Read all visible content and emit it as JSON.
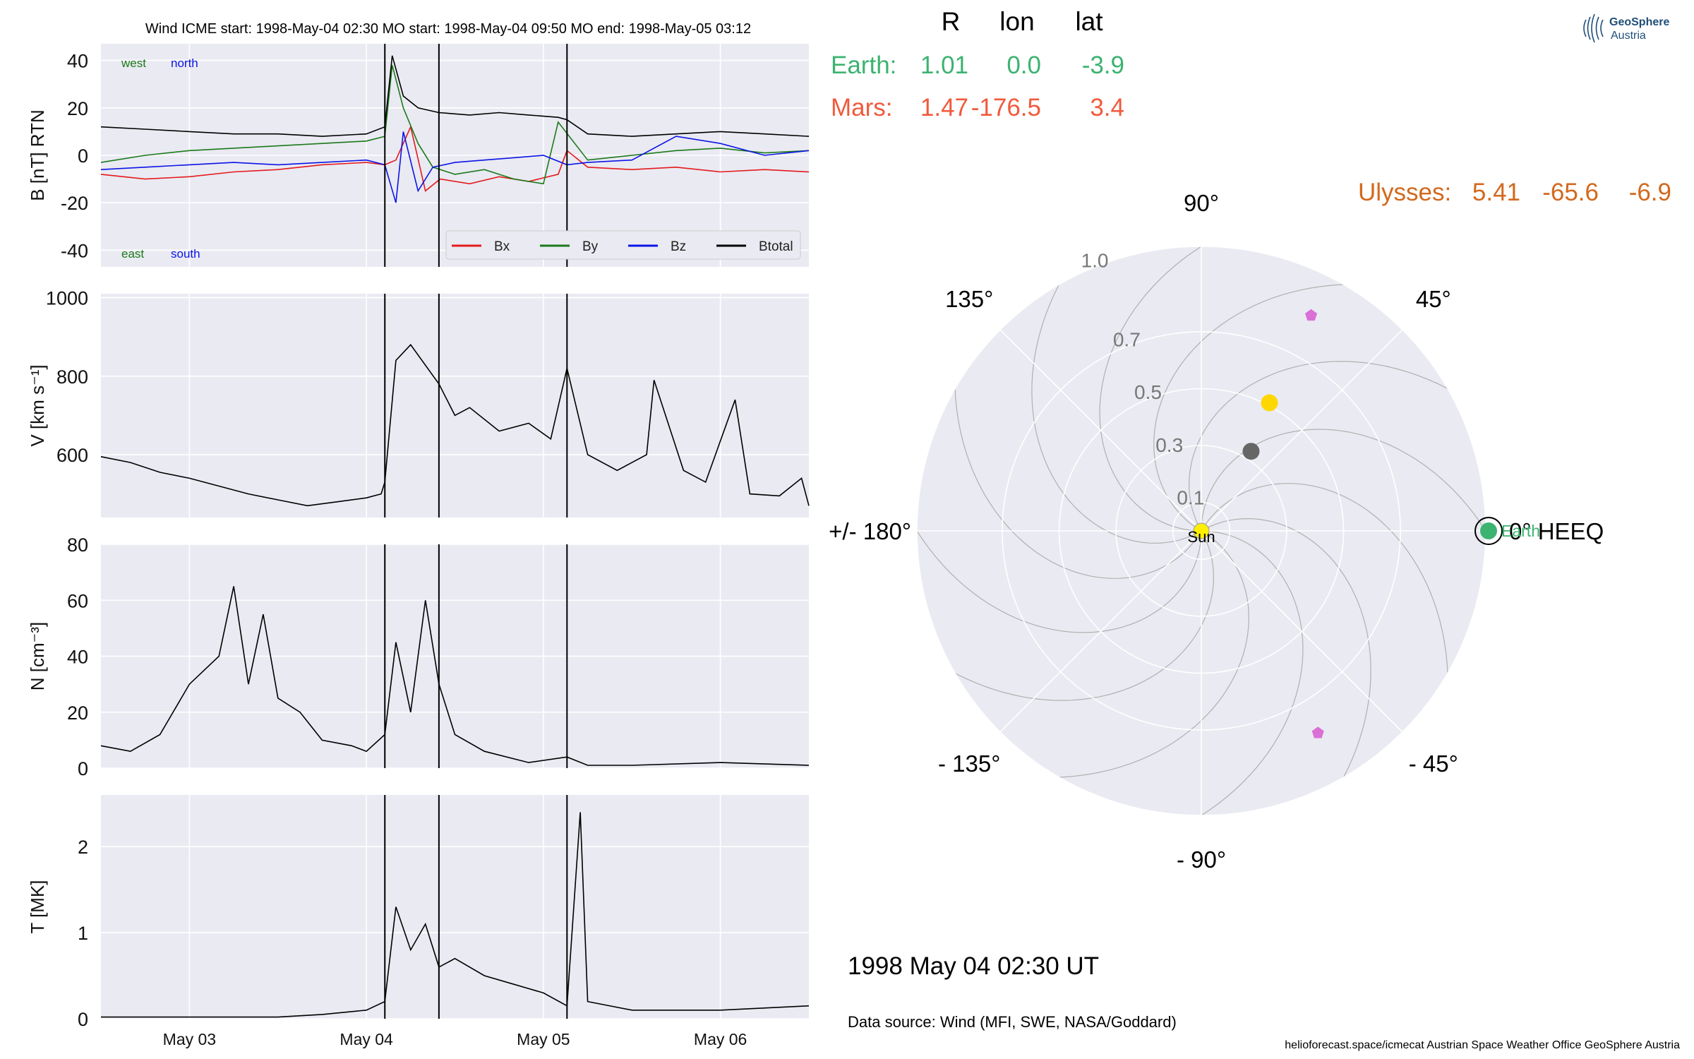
{
  "page": {
    "top_title": "Wind    ICME start: 1998-May-04 02:30    MO start: 1998-May-04 09:50    MO end: 1998-May-05 03:12",
    "date_label": "1998 May 04  02:30 UT",
    "data_source": "Data source: Wind (MFI, SWE, NASA/Goddard)",
    "footer": "helioforecast.space/icmecat   Austrian Space Weather Office   GeoSphere Austria",
    "logo_line1": "GeoSphere",
    "logo_line2": "Austria"
  },
  "positions_table": {
    "headers": [
      "R",
      "lon",
      "lat"
    ],
    "rows": [
      {
        "name": "Earth:",
        "R": "1.01",
        "lon": "0.0",
        "lat": "-3.9",
        "color": "#3cb371"
      },
      {
        "name": "Mars:",
        "R": "1.47",
        "lon": "-176.5",
        "lat": "3.4",
        "color": "#f05a3c"
      },
      {
        "name": "Ulysses:",
        "R": "5.41",
        "lon": "-65.6",
        "lat": "-6.9",
        "color": "#d2691e"
      }
    ]
  },
  "chart_data": [
    {
      "type": "line",
      "title": "",
      "ylabel": "B [nT] RTN",
      "ylim": [
        -47,
        47
      ],
      "yticks": [
        40,
        20,
        0,
        -20,
        -40
      ],
      "xlim": [
        "1998-05-02T12:00",
        "1998-05-06T12:00"
      ],
      "xticks": [
        "May 03",
        "May 04",
        "May 05",
        "May 06"
      ],
      "corner_labels": {
        "top_left": "west",
        "top_right": "north",
        "bottom_left": "east",
        "bottom_right": "south"
      },
      "legend": {
        "placement": "lower-right"
      },
      "series": [
        {
          "name": "Bx",
          "color": "#e41a1c",
          "x": [
            "1998-05-02T12:00",
            "1998-05-02T18:00",
            "1998-05-03T00:00",
            "1998-05-03T06:00",
            "1998-05-03T12:00",
            "1998-05-03T18:00",
            "1998-05-04T00:00",
            "1998-05-04T02:30",
            "1998-05-04T04:00",
            "1998-05-04T06:00",
            "1998-05-04T08:00",
            "1998-05-04T10:00",
            "1998-05-04T14:00",
            "1998-05-04T18:00",
            "1998-05-04T22:00",
            "1998-05-05T02:00",
            "1998-05-05T03:12",
            "1998-05-05T06:00",
            "1998-05-05T12:00",
            "1998-05-05T18:00",
            "1998-05-06T00:00",
            "1998-05-06T06:00",
            "1998-05-06T12:00"
          ],
          "values": [
            -8,
            -10,
            -9,
            -7,
            -6,
            -4,
            -3,
            -4,
            -2,
            12,
            -15,
            -10,
            -12,
            -9,
            -11,
            -8,
            2,
            -5,
            -6,
            -5,
            -7,
            -6,
            -7
          ]
        },
        {
          "name": "By",
          "color": "#1a7a1a",
          "x": [
            "1998-05-02T12:00",
            "1998-05-02T18:00",
            "1998-05-03T00:00",
            "1998-05-03T06:00",
            "1998-05-03T12:00",
            "1998-05-03T18:00",
            "1998-05-04T00:00",
            "1998-05-04T02:30",
            "1998-05-04T03:30",
            "1998-05-04T05:00",
            "1998-05-04T07:00",
            "1998-05-04T09:00",
            "1998-05-04T12:00",
            "1998-05-04T16:00",
            "1998-05-04T20:00",
            "1998-05-05T00:00",
            "1998-05-05T02:00",
            "1998-05-05T06:00",
            "1998-05-05T12:00",
            "1998-05-05T18:00",
            "1998-05-06T00:00",
            "1998-05-06T06:00",
            "1998-05-06T12:00"
          ],
          "values": [
            -3,
            0,
            2,
            3,
            4,
            5,
            6,
            8,
            38,
            20,
            5,
            -5,
            -8,
            -6,
            -10,
            -12,
            14,
            -2,
            0,
            2,
            3,
            1,
            2
          ]
        },
        {
          "name": "Bz",
          "color": "#0a14e6",
          "x": [
            "1998-05-02T12:00",
            "1998-05-02T18:00",
            "1998-05-03T00:00",
            "1998-05-03T06:00",
            "1998-05-03T12:00",
            "1998-05-03T18:00",
            "1998-05-04T00:00",
            "1998-05-04T02:30",
            "1998-05-04T04:00",
            "1998-05-04T05:00",
            "1998-05-04T07:00",
            "1998-05-04T09:00",
            "1998-05-04T12:00",
            "1998-05-04T16:00",
            "1998-05-04T20:00",
            "1998-05-05T00:00",
            "1998-05-05T03:12",
            "1998-05-05T06:00",
            "1998-05-05T12:00",
            "1998-05-05T18:00",
            "1998-05-06T00:00",
            "1998-05-06T06:00",
            "1998-05-06T12:00"
          ],
          "values": [
            -6,
            -5,
            -4,
            -3,
            -4,
            -3,
            -2,
            -4,
            -20,
            10,
            -15,
            -5,
            -3,
            -2,
            -1,
            0,
            -4,
            -3,
            -2,
            8,
            5,
            0,
            2
          ]
        },
        {
          "name": "Btotal",
          "color": "#000000",
          "x": [
            "1998-05-02T12:00",
            "1998-05-02T18:00",
            "1998-05-03T00:00",
            "1998-05-03T06:00",
            "1998-05-03T12:00",
            "1998-05-03T18:00",
            "1998-05-04T00:00",
            "1998-05-04T02:30",
            "1998-05-04T03:30",
            "1998-05-04T05:00",
            "1998-05-04T07:00",
            "1998-05-04T09:50",
            "1998-05-04T14:00",
            "1998-05-04T18:00",
            "1998-05-04T22:00",
            "1998-05-05T02:00",
            "1998-05-05T03:12",
            "1998-05-05T06:00",
            "1998-05-05T12:00",
            "1998-05-05T18:00",
            "1998-05-06T00:00",
            "1998-05-06T06:00",
            "1998-05-06T12:00"
          ],
          "values": [
            12,
            11,
            10,
            9,
            9,
            8,
            9,
            12,
            42,
            25,
            20,
            18,
            17,
            18,
            17,
            16,
            15,
            9,
            8,
            9,
            10,
            9,
            8
          ]
        }
      ]
    },
    {
      "type": "line",
      "title": "",
      "ylabel": "V [km s⁻¹]",
      "ylim": [
        440,
        1010
      ],
      "yticks": [
        1000,
        800,
        600
      ],
      "xlim": [
        "1998-05-02T12:00",
        "1998-05-06T12:00"
      ],
      "series": [
        {
          "name": "",
          "color": "#000000",
          "x": [
            "1998-05-02T12:00",
            "1998-05-02T16:00",
            "1998-05-02T20:00",
            "1998-05-03T00:00",
            "1998-05-03T04:00",
            "1998-05-03T08:00",
            "1998-05-03T12:00",
            "1998-05-03T16:00",
            "1998-05-03T20:00",
            "1998-05-04T00:00",
            "1998-05-04T02:00",
            "1998-05-04T02:30",
            "1998-05-04T04:00",
            "1998-05-04T06:00",
            "1998-05-04T09:50",
            "1998-05-04T12:00",
            "1998-05-04T14:00",
            "1998-05-04T18:00",
            "1998-05-04T22:00",
            "1998-05-05T01:00",
            "1998-05-05T03:12",
            "1998-05-05T06:00",
            "1998-05-05T10:00",
            "1998-05-05T14:00",
            "1998-05-05T15:00",
            "1998-05-05T19:00",
            "1998-05-05T22:00",
            "1998-05-06T02:00",
            "1998-05-06T04:00",
            "1998-05-06T08:00",
            "1998-05-06T11:00",
            "1998-05-06T12:00"
          ],
          "values": [
            595,
            580,
            555,
            540,
            520,
            500,
            485,
            470,
            480,
            490,
            500,
            530,
            840,
            880,
            780,
            700,
            720,
            660,
            680,
            640,
            820,
            600,
            560,
            600,
            790,
            560,
            530,
            740,
            500,
            495,
            540,
            470
          ]
        }
      ]
    },
    {
      "type": "line",
      "title": "",
      "ylabel": "N [cm⁻³]",
      "ylim": [
        0,
        80
      ],
      "yticks": [
        80,
        60,
        40,
        20,
        0
      ],
      "xlim": [
        "1998-05-02T12:00",
        "1998-05-06T12:00"
      ],
      "series": [
        {
          "name": "",
          "color": "#000000",
          "x": [
            "1998-05-02T12:00",
            "1998-05-02T16:00",
            "1998-05-02T20:00",
            "1998-05-03T00:00",
            "1998-05-03T04:00",
            "1998-05-03T06:00",
            "1998-05-03T08:00",
            "1998-05-03T10:00",
            "1998-05-03T12:00",
            "1998-05-03T15:00",
            "1998-05-03T18:00",
            "1998-05-03T22:00",
            "1998-05-04T00:00",
            "1998-05-04T02:30",
            "1998-05-04T04:00",
            "1998-05-04T06:00",
            "1998-05-04T08:00",
            "1998-05-04T09:50",
            "1998-05-04T12:00",
            "1998-05-04T16:00",
            "1998-05-04T22:00",
            "1998-05-05T03:12",
            "1998-05-05T06:00",
            "1998-05-05T12:00",
            "1998-05-06T00:00",
            "1998-05-06T12:00"
          ],
          "values": [
            8,
            6,
            12,
            30,
            40,
            65,
            30,
            55,
            25,
            20,
            10,
            8,
            6,
            12,
            45,
            20,
            60,
            30,
            12,
            6,
            2,
            4,
            1,
            1,
            2,
            1
          ]
        }
      ]
    },
    {
      "type": "line",
      "title": "",
      "ylabel": "T [MK]",
      "ylim": [
        0,
        2.6
      ],
      "yticks": [
        2,
        1,
        0
      ],
      "xlim": [
        "1998-05-02T12:00",
        "1998-05-06T12:00"
      ],
      "xticks": [
        "May 03",
        "May 04",
        "May 05",
        "May 06"
      ],
      "series": [
        {
          "name": "",
          "color": "#000000",
          "x": [
            "1998-05-02T12:00",
            "1998-05-03T00:00",
            "1998-05-03T12:00",
            "1998-05-03T18:00",
            "1998-05-04T00:00",
            "1998-05-04T02:30",
            "1998-05-04T04:00",
            "1998-05-04T06:00",
            "1998-05-04T08:00",
            "1998-05-04T09:50",
            "1998-05-04T12:00",
            "1998-05-04T16:00",
            "1998-05-04T20:00",
            "1998-05-05T00:00",
            "1998-05-05T03:12",
            "1998-05-05T05:00",
            "1998-05-05T06:00",
            "1998-05-05T12:00",
            "1998-05-06T00:00",
            "1998-05-06T12:00"
          ],
          "values": [
            0.02,
            0.02,
            0.02,
            0.05,
            0.1,
            0.2,
            1.3,
            0.8,
            1.1,
            0.6,
            0.7,
            0.5,
            0.4,
            0.3,
            0.15,
            2.4,
            0.2,
            0.1,
            0.1,
            0.15
          ]
        }
      ]
    },
    {
      "type": "scatter",
      "title": "",
      "projection": "polar",
      "r_ticks": [
        0.1,
        0.3,
        0.5,
        0.7,
        1.0
      ],
      "angle_labels": [
        "0° HEEQ",
        "45°",
        "90°",
        "135°",
        "+/- 180°",
        "- 135°",
        "- 90°",
        "- 45°"
      ],
      "points": [
        {
          "name": "Sun",
          "r": 0.0,
          "lon": 0.0,
          "color": "#ffee00"
        },
        {
          "name": "Earth",
          "r": 1.01,
          "lon": 0.0,
          "color": "#3cb371"
        },
        {
          "name": "",
          "r": 0.51,
          "lon": 62,
          "color": "#ffd700"
        },
        {
          "name": "",
          "r": 0.33,
          "lon": 58,
          "color": "#666666"
        },
        {
          "name": "",
          "r": 0.85,
          "lon": 63,
          "color": "#da70d6",
          "marker": "pentagon"
        },
        {
          "name": "",
          "r": 0.82,
          "lon": -60,
          "color": "#da70d6",
          "marker": "pentagon"
        }
      ]
    }
  ]
}
